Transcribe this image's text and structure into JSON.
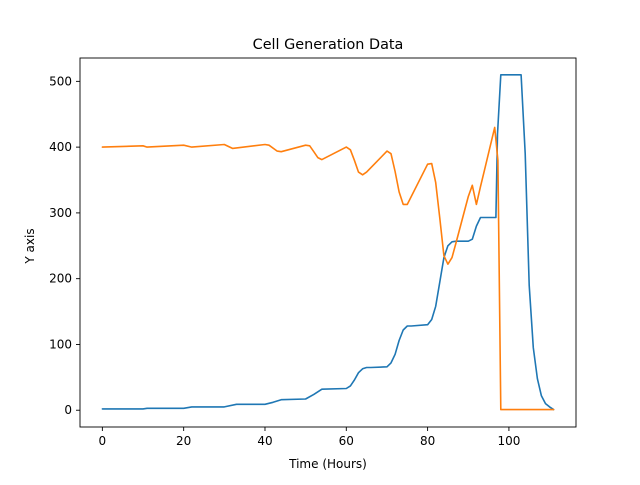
{
  "chart_data": {
    "type": "line",
    "title": "Cell Generation Data",
    "xlabel": "Time (Hours)",
    "ylabel": "Y axis",
    "xlim": [
      -5.5,
      116.5
    ],
    "ylim": [
      -25.5,
      535.5
    ],
    "xticks": [
      0,
      20,
      40,
      60,
      80,
      100
    ],
    "yticks": [
      0,
      100,
      200,
      300,
      400,
      500
    ],
    "grid": false,
    "legend": "none",
    "series": [
      {
        "color": "#1f77b4",
        "x": [
          0,
          10,
          11,
          20,
          22,
          30,
          33,
          40,
          42,
          44,
          50,
          52,
          54,
          60,
          61,
          62,
          63,
          64,
          65,
          66,
          70,
          71,
          72,
          73,
          74,
          75,
          76,
          80,
          81,
          82,
          83,
          84,
          85,
          86,
          87,
          90,
          91,
          92,
          93,
          96.8,
          97.2,
          98,
          103,
          104,
          105,
          106,
          107,
          108,
          109,
          110,
          111
        ],
        "y": [
          2,
          2,
          3,
          3,
          5,
          5,
          9,
          9,
          12,
          16,
          17,
          24,
          32,
          33,
          37,
          46,
          57,
          63,
          65,
          65,
          66,
          72,
          85,
          106,
          122,
          128,
          128,
          130,
          138,
          158,
          195,
          232,
          250,
          256,
          257,
          257,
          260,
          280,
          293,
          293,
          420,
          510,
          510,
          390,
          190,
          95,
          48,
          22,
          10,
          5,
          1
        ]
      },
      {
        "color": "#ff7f0e",
        "x": [
          0,
          10,
          11,
          20,
          22,
          30,
          32,
          40,
          41,
          43,
          44,
          50,
          51,
          52,
          53,
          54,
          60,
          61,
          62,
          63,
          64,
          65,
          70,
          71,
          72,
          73,
          74,
          75,
          80,
          81,
          82,
          83,
          84,
          85,
          86,
          87,
          90,
          91,
          92,
          93,
          94,
          96.5,
          97.3,
          98,
          111
        ],
        "y": [
          400,
          402,
          400,
          403,
          400,
          404,
          398,
          404,
          403,
          394,
          393,
          403,
          402,
          393,
          384,
          381,
          400,
          396,
          380,
          362,
          358,
          362,
          394,
          390,
          363,
          332,
          313,
          313,
          374,
          375,
          346,
          292,
          235,
          222,
          232,
          255,
          325,
          342,
          313,
          340,
          365,
          430,
          380,
          1,
          1
        ]
      }
    ]
  }
}
